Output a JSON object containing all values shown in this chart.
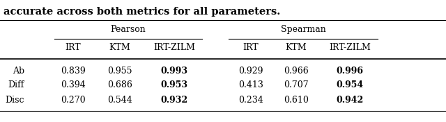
{
  "title_text": "accurate across both metrics for all parameters.",
  "header1": "Pearson",
  "header2": "Spearman",
  "col_headers": [
    "IRT",
    "KTM",
    "IRT-ZILM",
    "IRT",
    "KTM",
    "IRT-ZILM"
  ],
  "row_labels": [
    "Ab",
    "Diff",
    "Disc"
  ],
  "data": [
    [
      "0.839",
      "0.955",
      "0.993",
      "0.929",
      "0.966",
      "0.996"
    ],
    [
      "0.394",
      "0.686",
      "0.953",
      "0.413",
      "0.707",
      "0.954"
    ],
    [
      "0.270",
      "0.544",
      "0.932",
      "0.234",
      "0.610",
      "0.942"
    ]
  ],
  "bold_cols": [
    2,
    5
  ],
  "background_color": "#ffffff",
  "font_size": 9.0,
  "title_font_size": 10.5
}
